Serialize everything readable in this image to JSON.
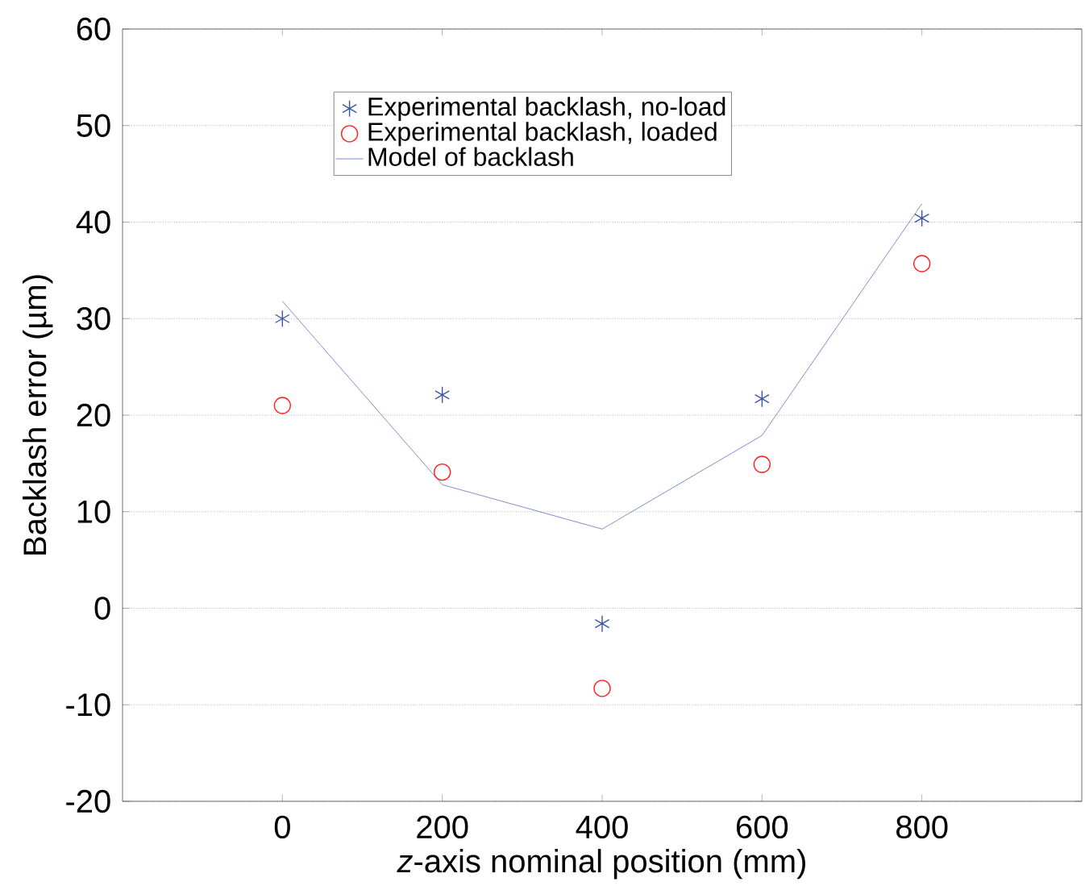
{
  "chart_data": {
    "type": "scatter",
    "xlabel": "*z*-axis nominal position (mm)",
    "ylabel": "Backlash error (µm)",
    "x": [
      0,
      200,
      400,
      600,
      800
    ],
    "series": [
      {
        "name": "Experimental backlash, no-load",
        "color": "#3a55a8",
        "marker": "cross",
        "values": [
          30.0,
          22.1,
          -1.6,
          21.7,
          40.4
        ]
      },
      {
        "name": "Experimental backlash, loaded",
        "color": "#ff2020",
        "marker": "circle",
        "values": [
          21.0,
          14.1,
          -8.3,
          14.9,
          35.7
        ]
      },
      {
        "name": "Model of backlash",
        "type": "line",
        "color": "#5a72c0",
        "marker": "none",
        "line_style": "solid",
        "values": [
          31.8,
          12.8,
          8.2,
          17.9,
          41.9
        ]
      }
    ],
    "xlim": [
      -200,
      1000
    ],
    "xticks": [
      0,
      200,
      400,
      600,
      800
    ],
    "ylim": [
      -20,
      60
    ],
    "yticks": [
      -20,
      -10,
      0,
      10,
      20,
      30,
      40,
      50,
      60
    ],
    "grid": "y",
    "legend": "top"
  }
}
